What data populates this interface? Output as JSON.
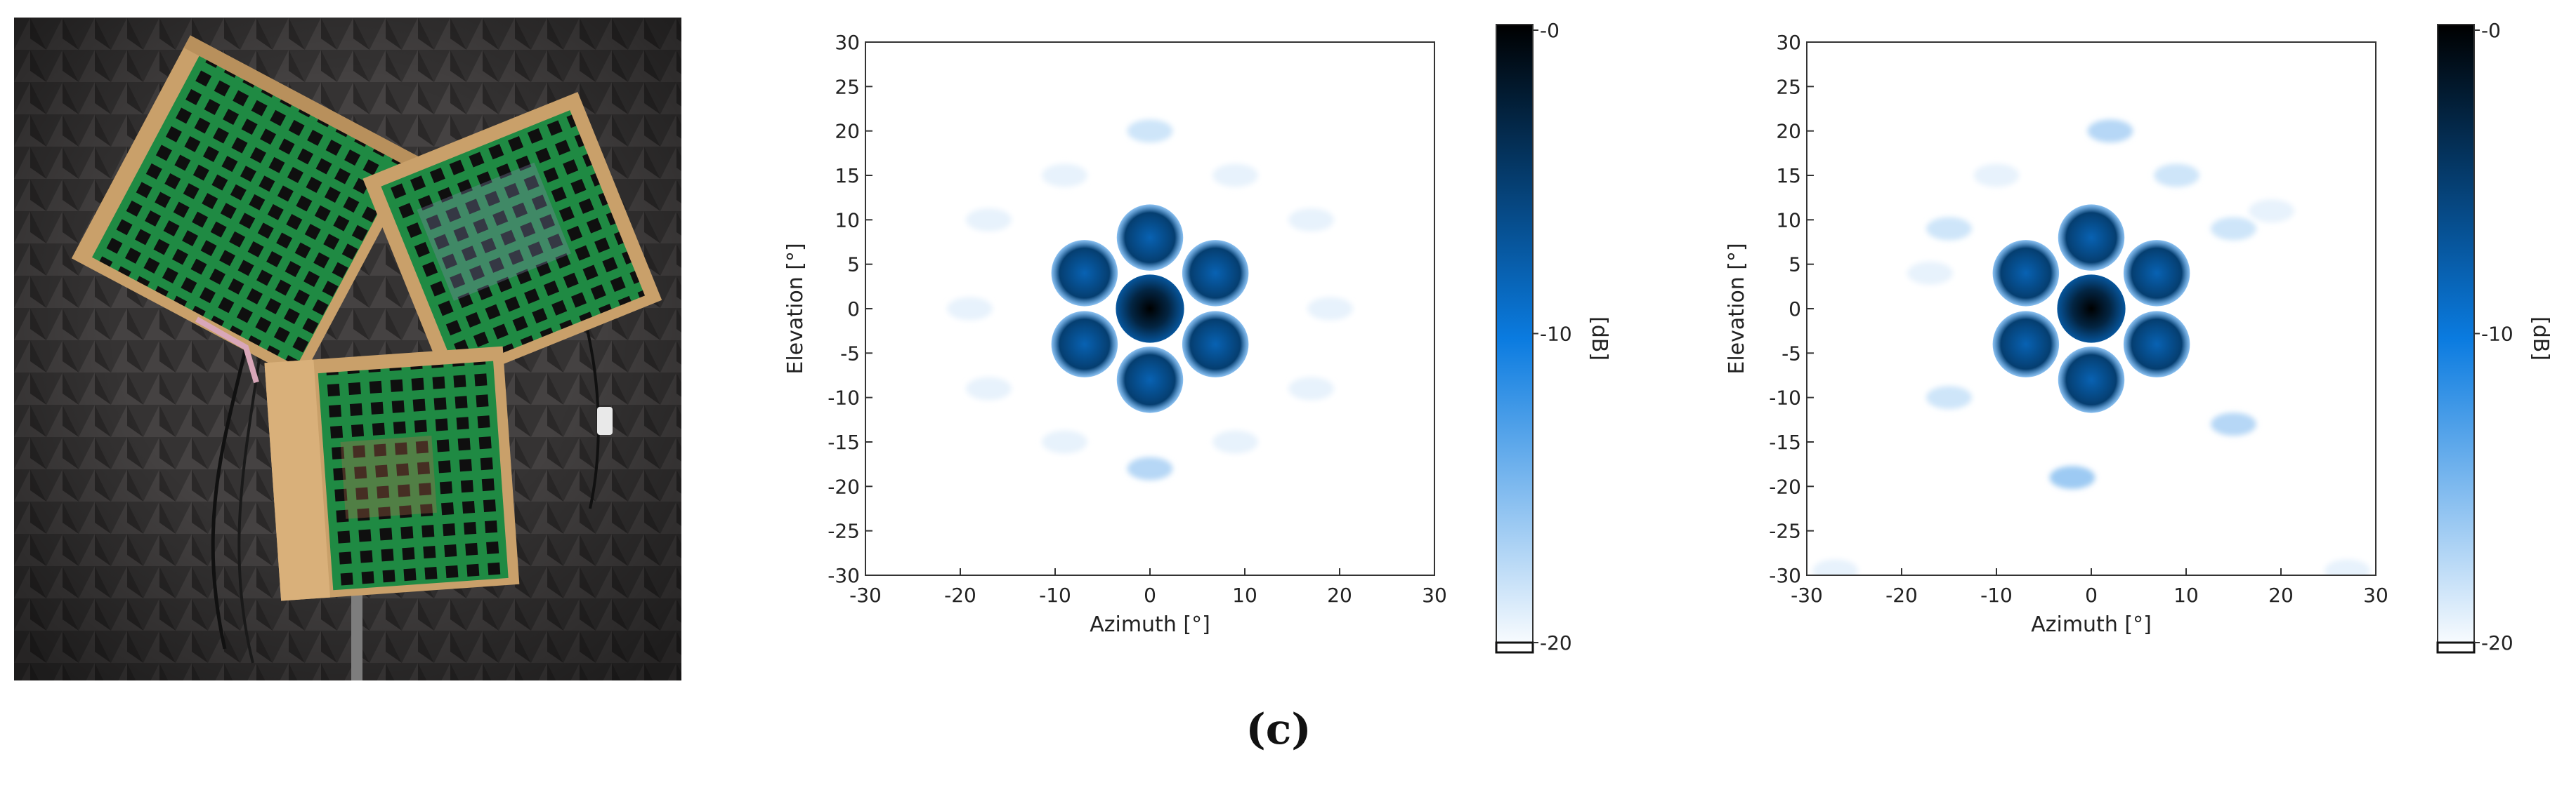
{
  "panel_label": "(c)",
  "colors": {
    "panel_green": "#1f8a43",
    "wood": "#c9a06a",
    "foam": "#3a3838",
    "colormap_low": "#ffffff",
    "colormap_mid": "#0a7be0",
    "colormap_high": "#000000"
  },
  "photo": {
    "description_icon": "antenna-array-photo"
  },
  "chart_data": [
    {
      "type": "heatmap",
      "title": "",
      "xlabel": "Azimuth [°]",
      "ylabel": "Elevation [°]",
      "xlim": [
        -30,
        30
      ],
      "ylim": [
        -30,
        30
      ],
      "xticks": [
        -30,
        -20,
        -10,
        0,
        10,
        20,
        30
      ],
      "yticks": [
        30,
        25,
        20,
        15,
        10,
        5,
        0,
        -5,
        -10,
        -15,
        -20,
        -25,
        -30
      ],
      "colorbar": {
        "label": "[dB]",
        "range": [
          -20,
          0
        ],
        "ticks": [
          "-0",
          "-10",
          "-20"
        ]
      },
      "grid": false,
      "main_lobe": {
        "az": 0,
        "el": 0,
        "level_db": 0
      },
      "grating_lobes": [
        {
          "az": 0,
          "el": 8,
          "level_db": -6
        },
        {
          "az": 0,
          "el": -8,
          "level_db": -6
        },
        {
          "az": -6.9,
          "el": 4,
          "level_db": -6
        },
        {
          "az": 6.9,
          "el": 4,
          "level_db": -6
        },
        {
          "az": -6.9,
          "el": -4,
          "level_db": -6
        },
        {
          "az": 6.9,
          "el": -4,
          "level_db": -6
        }
      ],
      "sidelobes": [
        {
          "az": 0,
          "el": 20,
          "level_db": -18
        },
        {
          "az": 0,
          "el": -18,
          "level_db": -17
        },
        {
          "az": -17,
          "el": 10,
          "level_db": -19
        },
        {
          "az": 17,
          "el": 10,
          "level_db": -19
        },
        {
          "az": -17,
          "el": -9,
          "level_db": -19
        },
        {
          "az": 17,
          "el": -9,
          "level_db": -19
        },
        {
          "az": -19,
          "el": 0,
          "level_db": -19
        },
        {
          "az": 19,
          "el": 0,
          "level_db": -19
        },
        {
          "az": -9,
          "el": 15,
          "level_db": -19
        },
        {
          "az": 9,
          "el": 15,
          "level_db": -19
        },
        {
          "az": -9,
          "el": -15,
          "level_db": -19
        },
        {
          "az": 9,
          "el": -15,
          "level_db": -19
        }
      ]
    },
    {
      "type": "heatmap",
      "title": "",
      "xlabel": "Azimuth [°]",
      "ylabel": "Elevation [°]",
      "xlim": [
        -30,
        30
      ],
      "ylim": [
        -30,
        30
      ],
      "xticks": [
        -30,
        -20,
        -10,
        0,
        10,
        20,
        30
      ],
      "yticks": [
        30,
        25,
        20,
        15,
        10,
        5,
        0,
        -5,
        -10,
        -15,
        -20,
        -25,
        -30
      ],
      "colorbar": {
        "label": "[dB]",
        "range": [
          -20,
          0
        ],
        "ticks": [
          "-0",
          "-10",
          "-20"
        ]
      },
      "grid": false,
      "main_lobe": {
        "az": 0,
        "el": 0,
        "level_db": 0
      },
      "grating_lobes": [
        {
          "az": 0,
          "el": 8,
          "level_db": -6
        },
        {
          "az": 0,
          "el": -8,
          "level_db": -6
        },
        {
          "az": -6.9,
          "el": 4,
          "level_db": -6
        },
        {
          "az": 6.9,
          "el": 4,
          "level_db": -6
        },
        {
          "az": -6.9,
          "el": -4,
          "level_db": -6
        },
        {
          "az": 6.9,
          "el": -4,
          "level_db": -6
        }
      ],
      "sidelobes": [
        {
          "az": 2,
          "el": 20,
          "level_db": -17
        },
        {
          "az": -2,
          "el": -19,
          "level_db": -16
        },
        {
          "az": -15,
          "el": 9,
          "level_db": -18
        },
        {
          "az": 15,
          "el": 9,
          "level_db": -18
        },
        {
          "az": -15,
          "el": -10,
          "level_db": -18
        },
        {
          "az": 15,
          "el": -13,
          "level_db": -17
        },
        {
          "az": -10,
          "el": 15,
          "level_db": -19
        },
        {
          "az": 9,
          "el": 15,
          "level_db": -18
        },
        {
          "az": -17,
          "el": 4,
          "level_db": -19
        },
        {
          "az": 19,
          "el": 11,
          "level_db": -19
        },
        {
          "az": -27,
          "el": -29.5,
          "level_db": -19
        },
        {
          "az": 27,
          "el": -29.5,
          "level_db": -19
        }
      ]
    }
  ]
}
